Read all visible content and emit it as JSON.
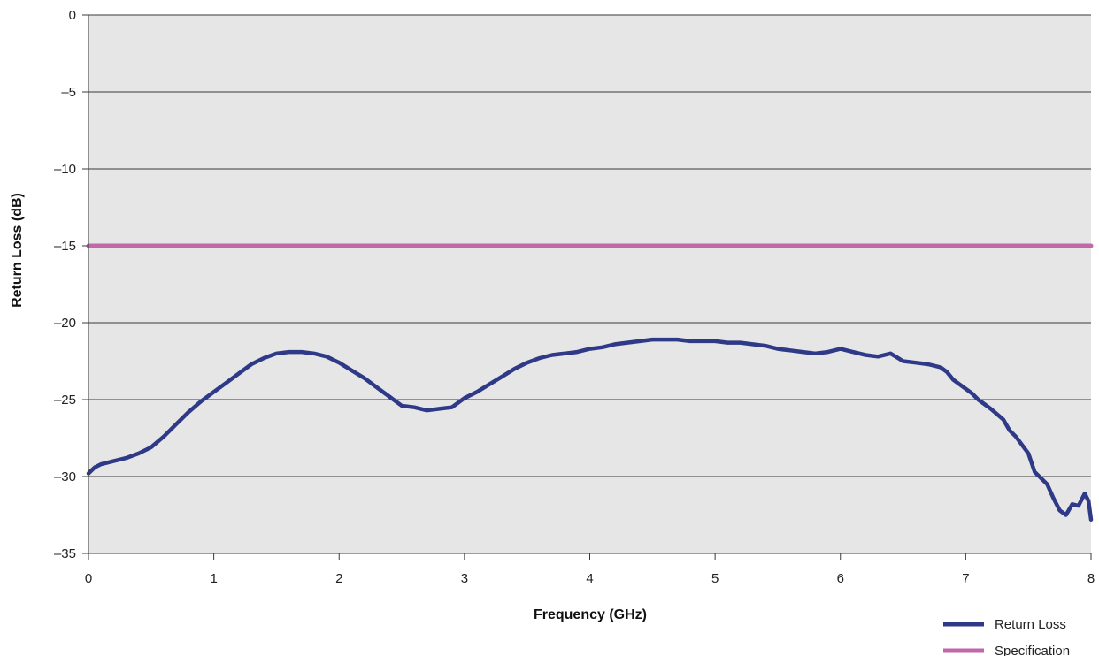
{
  "chart_data": {
    "type": "line",
    "title": "",
    "xlabel": "Frequency (GHz)",
    "ylabel": "Return Loss (dB)",
    "xlim": [
      0,
      8
    ],
    "ylim": [
      -35,
      0
    ],
    "xticks": [
      0,
      1,
      2,
      3,
      4,
      5,
      6,
      7,
      8
    ],
    "yticks": [
      0,
      -5,
      -10,
      -15,
      -20,
      -25,
      -30,
      -35
    ],
    "ytick_labels": [
      "0",
      "–5",
      "–10",
      "–15",
      "–20",
      "–25",
      "–30",
      "–35"
    ],
    "grid": "horizontal",
    "plot_background": "#e6e6e6",
    "legend_position": "bottom-right",
    "series": [
      {
        "name": "Return Loss",
        "color": "#2e3a87",
        "x": [
          0,
          0.05,
          0.1,
          0.2,
          0.3,
          0.4,
          0.5,
          0.6,
          0.7,
          0.8,
          0.9,
          1.0,
          1.1,
          1.2,
          1.3,
          1.4,
          1.5,
          1.6,
          1.7,
          1.8,
          1.9,
          2.0,
          2.1,
          2.2,
          2.3,
          2.4,
          2.5,
          2.6,
          2.7,
          2.8,
          2.9,
          3.0,
          3.1,
          3.2,
          3.3,
          3.4,
          3.5,
          3.6,
          3.7,
          3.8,
          3.9,
          4.0,
          4.1,
          4.2,
          4.3,
          4.4,
          4.5,
          4.6,
          4.7,
          4.8,
          4.9,
          5.0,
          5.1,
          5.2,
          5.3,
          5.4,
          5.5,
          5.6,
          5.7,
          5.8,
          5.9,
          6.0,
          6.05,
          6.1,
          6.2,
          6.3,
          6.4,
          6.5,
          6.6,
          6.7,
          6.8,
          6.85,
          6.9,
          7.0,
          7.05,
          7.1,
          7.2,
          7.3,
          7.35,
          7.4,
          7.5,
          7.55,
          7.6,
          7.65,
          7.7,
          7.75,
          7.8,
          7.85,
          7.9,
          7.95,
          7.98,
          8.0
        ],
        "y": [
          -29.8,
          -29.4,
          -29.2,
          -29.0,
          -28.8,
          -28.5,
          -28.1,
          -27.4,
          -26.6,
          -25.8,
          -25.1,
          -24.5,
          -23.9,
          -23.3,
          -22.7,
          -22.3,
          -22.0,
          -21.9,
          -21.9,
          -22.0,
          -22.2,
          -22.6,
          -23.1,
          -23.6,
          -24.2,
          -24.8,
          -25.4,
          -25.5,
          -25.7,
          -25.6,
          -25.5,
          -24.9,
          -24.5,
          -24.0,
          -23.5,
          -23.0,
          -22.6,
          -22.3,
          -22.1,
          -22.0,
          -21.9,
          -21.7,
          -21.6,
          -21.4,
          -21.3,
          -21.2,
          -21.1,
          -21.1,
          -21.1,
          -21.2,
          -21.2,
          -21.2,
          -21.3,
          -21.3,
          -21.4,
          -21.5,
          -21.7,
          -21.8,
          -21.9,
          -22.0,
          -21.9,
          -21.7,
          -21.8,
          -21.9,
          -22.1,
          -22.2,
          -22.0,
          -22.5,
          -22.6,
          -22.7,
          -22.9,
          -23.2,
          -23.7,
          -24.3,
          -24.6,
          -25.0,
          -25.6,
          -26.3,
          -27.0,
          -27.4,
          -28.5,
          -29.7,
          -30.1,
          -30.5,
          -31.4,
          -32.2,
          -32.5,
          -31.8,
          -31.9,
          -31.1,
          -31.6,
          -32.8
        ]
      },
      {
        "name": "Specification",
        "color": "#c267a8",
        "x": [
          0,
          8
        ],
        "y": [
          -15,
          -15
        ]
      }
    ]
  }
}
